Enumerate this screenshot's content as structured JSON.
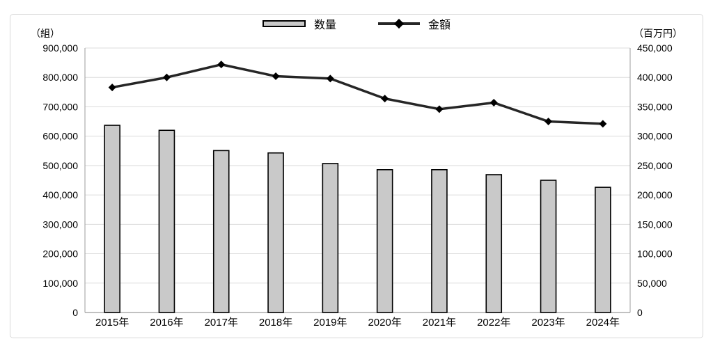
{
  "chart_data": {
    "type": "combo",
    "title": "",
    "categories": [
      "2015年",
      "2016年",
      "2017年",
      "2018年",
      "2019年",
      "2020年",
      "2021年",
      "2022年",
      "2023年",
      "2024年"
    ],
    "series": [
      {
        "name": "数量",
        "type": "bar",
        "axis": "left",
        "values": [
          637000,
          620000,
          551000,
          543000,
          507000,
          486000,
          486000,
          469000,
          450000,
          426000
        ],
        "fill": "#c9c9c9",
        "stroke": "#000000"
      },
      {
        "name": "金額",
        "type": "line",
        "axis": "right",
        "values": [
          383000,
          400000,
          422000,
          402000,
          398000,
          364000,
          346000,
          357000,
          325000,
          321000
        ],
        "color": "#262626",
        "marker": "diamond",
        "marker_color": "#000000"
      }
    ],
    "axes": {
      "left": {
        "unit_label": "（組）",
        "min": 0,
        "max": 900000,
        "step": 100000
      },
      "right": {
        "unit_label": "（百万円）",
        "min": 0,
        "max": 450000,
        "step": 50000
      }
    },
    "grid": "horizontal",
    "legend_position": "top-center"
  },
  "colors": {
    "gridline": "#dcdcdc",
    "axis_line": "#9c9c9c",
    "text": "#000000",
    "card_border": "#d8d8d8",
    "background": "#ffffff"
  }
}
